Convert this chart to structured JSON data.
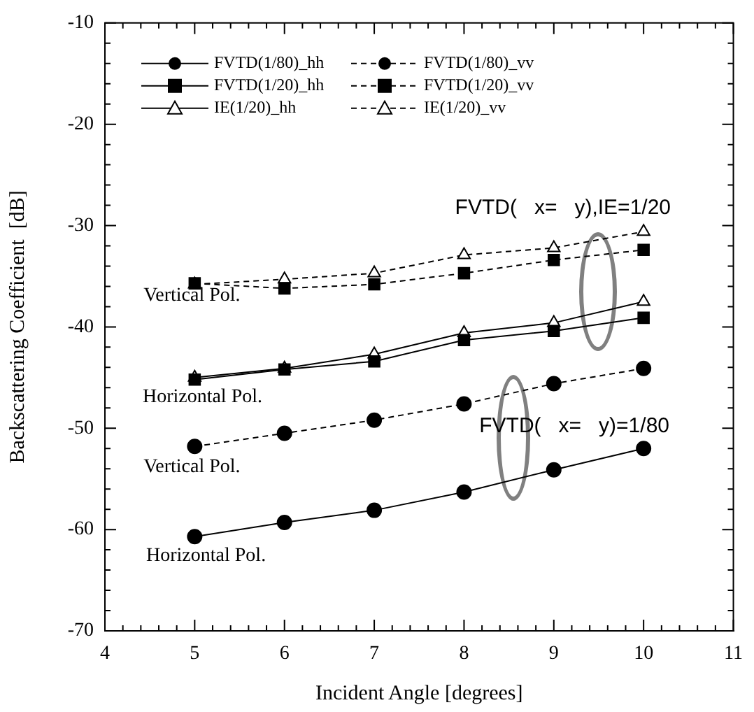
{
  "chart_data": {
    "type": "line",
    "xlabel": "Incident Angle [degrees]",
    "ylabel": "Backscattering Coefficient  [dB]",
    "x": [
      5,
      6,
      7,
      8,
      9,
      10
    ],
    "xlim": [
      4,
      11
    ],
    "xticks": [
      4,
      5,
      6,
      7,
      8,
      9,
      10,
      11
    ],
    "ylim": [
      -70,
      -10
    ],
    "yticks": [
      -70,
      -60,
      -50,
      -40,
      -30,
      -20,
      -10
    ],
    "grid": false,
    "legend": "top left",
    "series": [
      {
        "name": "FVTD(1/80)_hh",
        "color": "#000000",
        "marker": "circle",
        "line_style": "solid",
        "values": [
          -60.7,
          -59.3,
          -58.1,
          -56.3,
          -54.1,
          -52.0
        ]
      },
      {
        "name": "FVTD(1/80)_vv",
        "color": "#000000",
        "marker": "circle",
        "line_style": "dashed",
        "values": [
          -51.8,
          -50.5,
          -49.2,
          -47.6,
          -45.6,
          -44.1
        ]
      },
      {
        "name": "FVTD(1/20)_hh",
        "color": "#000000",
        "marker": "square",
        "line_style": "solid",
        "values": [
          -45.2,
          -44.2,
          -43.4,
          -41.3,
          -40.4,
          -39.1
        ]
      },
      {
        "name": "FVTD(1/20)_vv",
        "color": "#000000",
        "marker": "square",
        "line_style": "dashed",
        "values": [
          -35.7,
          -36.2,
          -35.8,
          -34.7,
          -33.4,
          -32.4
        ]
      },
      {
        "name": "IE(1/20)_hh",
        "color": "#000000",
        "marker": "triangle",
        "line_style": "solid",
        "values": [
          -45.0,
          -44.1,
          -42.7,
          -40.6,
          -39.6,
          -37.5
        ]
      },
      {
        "name": "IE(1/20)_vv",
        "color": "#000000",
        "marker": "triangle",
        "line_style": "dashed",
        "values": [
          -35.8,
          -35.3,
          -34.7,
          -32.9,
          -32.2,
          -30.6
        ]
      }
    ],
    "annotations": [
      "Vertical Pol.",
      "Horizontal Pol.",
      "Vertical Pol.",
      "Horizontal Pol.",
      "FVTD(   x=   y),IE=1/20",
      "FVTD(   x=   y)=1/80"
    ]
  }
}
